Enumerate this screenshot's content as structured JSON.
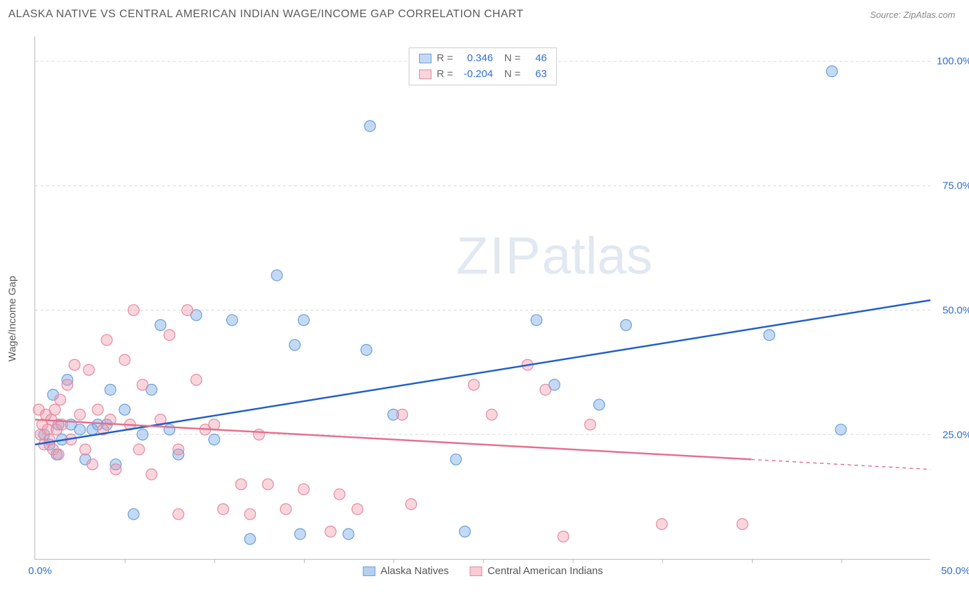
{
  "header": {
    "title": "ALASKA NATIVE VS CENTRAL AMERICAN INDIAN WAGE/INCOME GAP CORRELATION CHART",
    "source": "Source: ZipAtlas.com"
  },
  "chart": {
    "type": "scatter",
    "y_axis_title": "Wage/Income Gap",
    "xlim": [
      0,
      50
    ],
    "ylim": [
      0,
      105
    ],
    "x_origin_label": "0.0%",
    "x_max_label": "50.0%",
    "y_tick_values": [
      25,
      50,
      75,
      100
    ],
    "y_tick_labels": [
      "25.0%",
      "50.0%",
      "75.0%",
      "100.0%"
    ],
    "x_tick_values": [
      5,
      10,
      15,
      20,
      25,
      30,
      35,
      40,
      45
    ],
    "background_color": "#ffffff",
    "grid_color": "#d8d8d8",
    "axis_color": "#bbbbbb",
    "label_color": "#2f6fd0",
    "marker_radius": 8,
    "marker_stroke_width": 1.2,
    "trend_line_width": 2.5,
    "series": [
      {
        "name": "Alaska Natives",
        "fill_color": "rgba(122,170,230,0.45)",
        "stroke_color": "#6a9fd8",
        "line_color": "#1f5fc8",
        "r_value": "0.346",
        "n_value": "46",
        "trend": {
          "x1": 0,
          "y1": 23,
          "x2": 50,
          "y2": 52
        },
        "points": [
          [
            0.5,
            25
          ],
          [
            0.8,
            23
          ],
          [
            1.0,
            33
          ],
          [
            1.2,
            21
          ],
          [
            1.3,
            27
          ],
          [
            1.5,
            24
          ],
          [
            1.8,
            36
          ],
          [
            2.0,
            27
          ],
          [
            2.5,
            26
          ],
          [
            2.8,
            20
          ],
          [
            3.2,
            26
          ],
          [
            3.5,
            27
          ],
          [
            4.0,
            27
          ],
          [
            4.2,
            34
          ],
          [
            4.5,
            19
          ],
          [
            5.0,
            30
          ],
          [
            5.5,
            9
          ],
          [
            6.0,
            25
          ],
          [
            6.5,
            34
          ],
          [
            7.0,
            47
          ],
          [
            7.5,
            26
          ],
          [
            8.0,
            21
          ],
          [
            9.0,
            49
          ],
          [
            10.0,
            24
          ],
          [
            11.0,
            48
          ],
          [
            12.0,
            4
          ],
          [
            13.5,
            57
          ],
          [
            14.5,
            43
          ],
          [
            14.8,
            5
          ],
          [
            15.0,
            48
          ],
          [
            17.5,
            5
          ],
          [
            18.5,
            42
          ],
          [
            18.7,
            87
          ],
          [
            20.0,
            29
          ],
          [
            23.5,
            20
          ],
          [
            24.0,
            5.5
          ],
          [
            28.0,
            48
          ],
          [
            29.0,
            35
          ],
          [
            31.5,
            31
          ],
          [
            33.0,
            47
          ],
          [
            41.0,
            45
          ],
          [
            44.5,
            98
          ],
          [
            45.0,
            26
          ]
        ]
      },
      {
        "name": "Central American Indians",
        "fill_color": "rgba(240,150,170,0.40)",
        "stroke_color": "#e28aa0",
        "line_color": "#e56f8f",
        "r_value": "-0.204",
        "n_value": "63",
        "trend": {
          "x1": 0,
          "y1": 28,
          "x2": 40,
          "y2": 20
        },
        "trend_dashed_ext": {
          "x1": 40,
          "y1": 20,
          "x2": 50,
          "y2": 18
        },
        "points": [
          [
            0.2,
            30
          ],
          [
            0.3,
            25
          ],
          [
            0.4,
            27
          ],
          [
            0.5,
            23
          ],
          [
            0.6,
            29
          ],
          [
            0.7,
            26
          ],
          [
            0.8,
            24
          ],
          [
            0.9,
            28
          ],
          [
            1.0,
            22
          ],
          [
            1.1,
            30
          ],
          [
            1.2,
            26
          ],
          [
            1.3,
            21
          ],
          [
            1.4,
            32
          ],
          [
            1.5,
            27
          ],
          [
            1.8,
            35
          ],
          [
            2.0,
            24
          ],
          [
            2.2,
            39
          ],
          [
            2.5,
            29
          ],
          [
            2.8,
            22
          ],
          [
            3.0,
            38
          ],
          [
            3.2,
            19
          ],
          [
            3.5,
            30
          ],
          [
            3.8,
            26
          ],
          [
            4.0,
            44
          ],
          [
            4.2,
            28
          ],
          [
            4.5,
            18
          ],
          [
            5.0,
            40
          ],
          [
            5.3,
            27
          ],
          [
            5.5,
            50
          ],
          [
            5.8,
            22
          ],
          [
            6.0,
            35
          ],
          [
            6.5,
            17
          ],
          [
            7.0,
            28
          ],
          [
            7.5,
            45
          ],
          [
            8.0,
            22
          ],
          [
            8.5,
            50
          ],
          [
            9.0,
            36
          ],
          [
            9.5,
            26
          ],
          [
            8.0,
            9
          ],
          [
            10.0,
            27
          ],
          [
            10.5,
            10
          ],
          [
            11.5,
            15
          ],
          [
            12.0,
            9
          ],
          [
            12.5,
            25
          ],
          [
            13.0,
            15
          ],
          [
            14.0,
            10
          ],
          [
            15.0,
            14
          ],
          [
            16.5,
            5.5
          ],
          [
            17.0,
            13
          ],
          [
            18.0,
            10
          ],
          [
            20.5,
            29
          ],
          [
            21.0,
            11
          ],
          [
            24.5,
            35
          ],
          [
            25.5,
            29
          ],
          [
            27.5,
            39
          ],
          [
            28.5,
            34
          ],
          [
            29.5,
            4.5
          ],
          [
            31.0,
            27
          ],
          [
            35.0,
            7
          ],
          [
            39.5,
            7
          ]
        ]
      }
    ],
    "bottom_legend": [
      {
        "label": "Alaska Natives",
        "fill": "rgba(122,170,230,0.55)",
        "stroke": "#6a9fd8"
      },
      {
        "label": "Central American Indians",
        "fill": "rgba(240,150,170,0.5)",
        "stroke": "#e28aa0"
      }
    ],
    "watermark": {
      "zip": "ZIP",
      "atlas": "atlas"
    }
  }
}
